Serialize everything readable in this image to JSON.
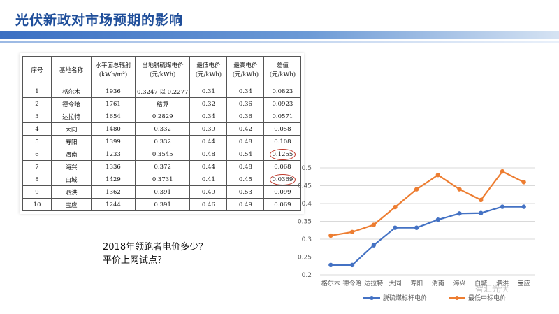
{
  "title": "光伏新政对市场预期的影响",
  "table": {
    "headers": [
      "序号",
      "基地名称",
      "水平面总辐射\n(kWh/m²)",
      "当地脱硫煤电价\n(元/kWh)",
      "最低电价\n(元/kWh)",
      "最高电价\n(元/kWh)",
      "差值\n(元/kWh)"
    ],
    "rows": [
      [
        "1",
        "格尔木",
        "1936",
        "0.3247 以 0.2277",
        "0.31",
        "0.34",
        "0.0823"
      ],
      [
        "2",
        "德令哈",
        "1761",
        "结算",
        "0.32",
        "0.36",
        "0.0923"
      ],
      [
        "3",
        "达拉特",
        "1654",
        "0.2829",
        "0.34",
        "0.36",
        "0.0571"
      ],
      [
        "4",
        "大同",
        "1480",
        "0.332",
        "0.39",
        "0.42",
        "0.058"
      ],
      [
        "5",
        "寿阳",
        "1399",
        "0.332",
        "0.44",
        "0.48",
        "0.108"
      ],
      [
        "6",
        "渭南",
        "1233",
        "0.3545",
        "0.48",
        "0.54",
        "0.1255"
      ],
      [
        "7",
        "海兴",
        "1336",
        "0.372",
        "0.44",
        "0.48",
        "0.068"
      ],
      [
        "8",
        "白城",
        "1429",
        "0.3731",
        "0.41",
        "0.45",
        "0.0369"
      ],
      [
        "9",
        "泗洪",
        "1362",
        "0.391",
        "0.49",
        "0.53",
        "0.099"
      ],
      [
        "10",
        "宝应",
        "1244",
        "0.391",
        "0.46",
        "0.49",
        "0.069"
      ]
    ]
  },
  "question": {
    "line1": "2018年领跑者电价多少？",
    "line2": "平价上网试点？"
  },
  "watermark": "智汇光伏",
  "chart_data": {
    "type": "line",
    "categories": [
      "格尔木",
      "德令哈",
      "达拉特",
      "大同",
      "寿阳",
      "渭南",
      "海兴",
      "白城",
      "泗洪",
      "宝应"
    ],
    "series": [
      {
        "name": "脱硫煤标杆电价",
        "color": "#4472c4",
        "values": [
          0.2277,
          0.2277,
          0.2829,
          0.332,
          0.332,
          0.3545,
          0.372,
          0.3731,
          0.391,
          0.391
        ]
      },
      {
        "name": "最低中标电价",
        "color": "#ed7d31",
        "values": [
          0.31,
          0.32,
          0.34,
          0.39,
          0.44,
          0.48,
          0.44,
          0.41,
          0.49,
          0.46
        ]
      }
    ],
    "y_ticks": [
      "0.2",
      "0.25",
      "0.3",
      "0.35",
      "0.4",
      "0.45",
      "0.5"
    ],
    "ylim": [
      0.2,
      0.5
    ],
    "grid": true,
    "legend": "bottom"
  }
}
